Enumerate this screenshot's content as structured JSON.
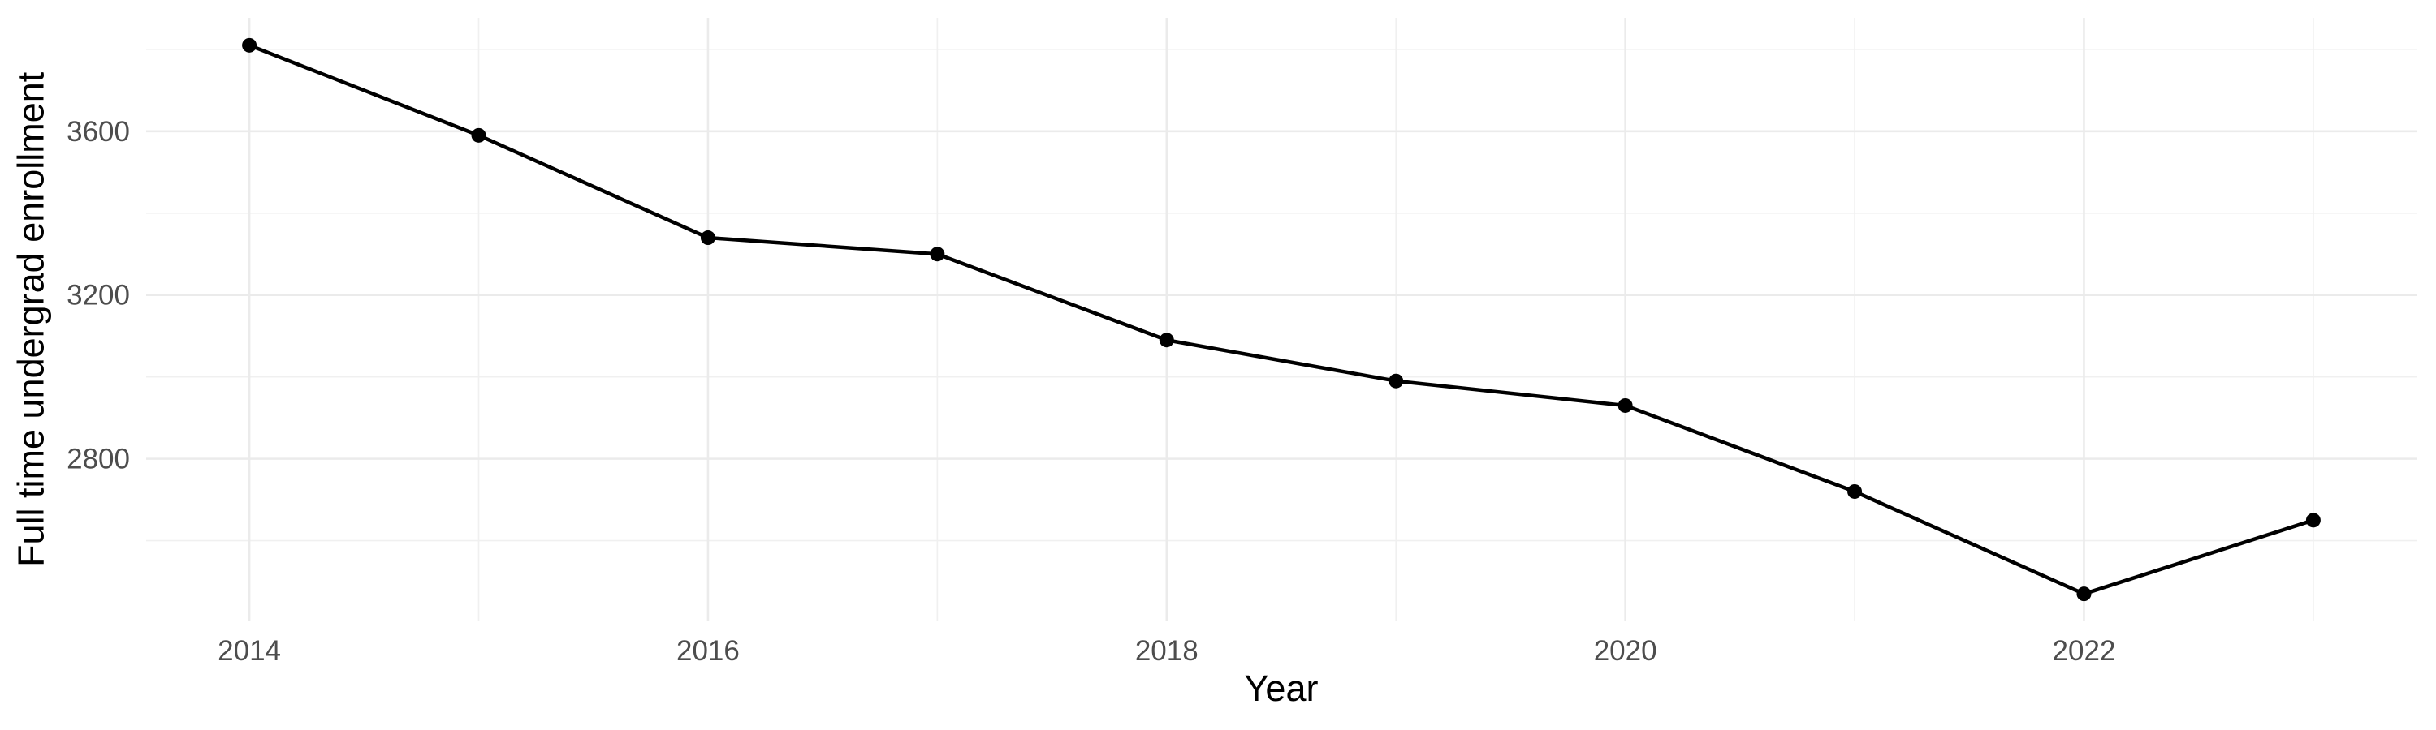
{
  "chart_data": {
    "type": "line",
    "title": "",
    "xlabel": "Year",
    "ylabel": "Full time undergrad enrollment",
    "x": [
      2014,
      2015,
      2016,
      2017,
      2018,
      2019,
      2020,
      2021,
      2022,
      2023
    ],
    "series": [
      {
        "name": "Full time undergrad enrollment",
        "values": [
          3810,
          3590,
          3340,
          3300,
          3090,
          2990,
          2930,
          2720,
          2470,
          2650
        ]
      }
    ],
    "x_major_ticks": [
      2014,
      2016,
      2018,
      2020,
      2022
    ],
    "x_minor_ticks": [
      2015,
      2017,
      2019,
      2021,
      2023
    ],
    "y_major_ticks": [
      2800,
      3200,
      3600
    ],
    "y_minor_ticks": [
      2600,
      3000,
      3400,
      3800
    ],
    "xlim": [
      2013.55,
      2023.45
    ],
    "ylim": [
      2403,
      3877
    ],
    "grid": "major+minor",
    "legend_position": "none",
    "colors": {
      "line": "#000000",
      "point": "#000000",
      "grid_major": "#EBEBEB",
      "grid_minor": "#F0F0F0",
      "tick_label": "#4D4D4D",
      "axis_title": "#000000",
      "background": "#FFFFFF"
    }
  }
}
